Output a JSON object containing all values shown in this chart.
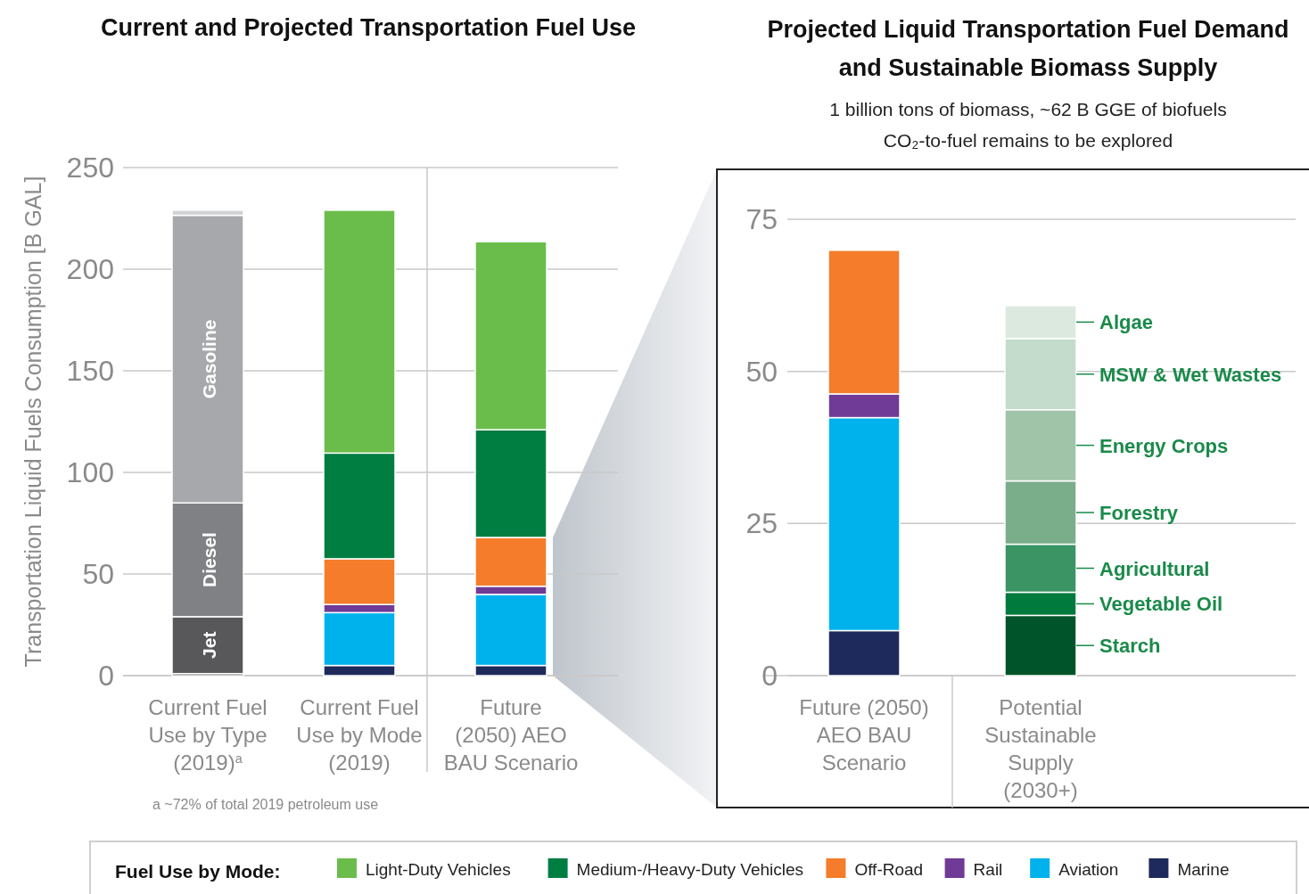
{
  "chart_data": [
    {
      "type": "bar",
      "stacked": true,
      "title": "Current and Projected Transportation Fuel Use",
      "ylabel": "Transportation Liquid Fuels Consumption [B GAL]",
      "categories": [
        "Current Fuel Use by Type (2019)$^{a}$",
        "Current Fuel Use by Mode (2019)",
        "Future (2050) AEO BAU Scenario"
      ],
      "ylim": [
        0,
        250
      ],
      "yticks": [
        0,
        50,
        100,
        150,
        200,
        250
      ],
      "grid": "y",
      "legend": "bottom",
      "legend_title": "Fuel Use by Mode:",
      "annotations": [
        "a ~72% of total 2019 petroleum use"
      ],
      "series": [
        {
          "color": "#111111",
          "values": [
            1,
            null,
            null
          ]
        },
        {
          "name": "Jet",
          "color": "#58585a",
          "values": [
            28,
            null,
            null
          ]
        },
        {
          "name": "Diesel",
          "color": "#808184",
          "values": [
            56,
            null,
            null
          ]
        },
        {
          "name": "Gasoline",
          "color": "#a7a8ab",
          "values": [
            141.5,
            null,
            null
          ]
        },
        {
          "color": "#d1d2d4",
          "values": [
            2.5,
            null,
            null
          ]
        },
        {
          "name": "Marine",
          "color": "#1f2a5c",
          "values": [
            null,
            5,
            5
          ]
        },
        {
          "name": "Aviation",
          "color": "#00b2ec",
          "values": [
            null,
            26,
            35
          ]
        },
        {
          "name": "Rail",
          "color": "#6f3b96",
          "values": [
            null,
            4,
            4
          ]
        },
        {
          "name": "Off-Road",
          "color": "#f47c2b",
          "values": [
            null,
            22.5,
            24
          ]
        },
        {
          "name": "Medium-/Heavy-Duty Vehicles",
          "color": "#007e41",
          "values": [
            null,
            52,
            53
          ]
        },
        {
          "name": "Light-Duty Vehicles",
          "color": "#6abd4b",
          "values": [
            null,
            119.5,
            92.5
          ]
        }
      ]
    },
    {
      "type": "bar",
      "stacked": true,
      "title": "Projected Liquid Transportation Fuel Demand and Sustainable Biomass Supply",
      "subtitle": "1 billion tons of biomass, ~62 B GGE of biofuels\nCO₂-to-fuel remains to be explored",
      "categories": [
        "Future (2050) AEO BAU Scenario",
        "Potential Sustainable Supply (2030+)"
      ],
      "ylim": [
        0,
        75
      ],
      "yticks": [
        0,
        25,
        50,
        75
      ],
      "grid": "y",
      "legend": false,
      "series": [
        {
          "color": "#1f2a5c",
          "values": [
            7.4,
            null
          ]
        },
        {
          "color": "#00b2ec",
          "values": [
            35,
            null
          ]
        },
        {
          "color": "#6f3b96",
          "values": [
            3.9,
            null
          ]
        },
        {
          "color": "#f47c2b",
          "values": [
            23.6,
            null
          ]
        },
        {
          "name": "Starch",
          "color": "#00542a",
          "values": [
            null,
            9.9
          ]
        },
        {
          "name": "Vegetable Oil",
          "color": "#007a3d",
          "values": [
            null,
            3.8
          ]
        },
        {
          "name": "Agricultural",
          "color": "#3a9464",
          "values": [
            null,
            7.9
          ]
        },
        {
          "name": "Forestry",
          "color": "#7aae8a",
          "values": [
            null,
            10.4
          ]
        },
        {
          "name": "Energy Crops",
          "color": "#a0c4a8",
          "values": [
            null,
            11.7
          ]
        },
        {
          "name": "MSW & Wet Wastes",
          "color": "#c4dccb",
          "values": [
            null,
            11.7
          ]
        },
        {
          "name": "Algae",
          "color": "#dce9df",
          "values": [
            null,
            5.4
          ]
        }
      ]
    }
  ]
}
